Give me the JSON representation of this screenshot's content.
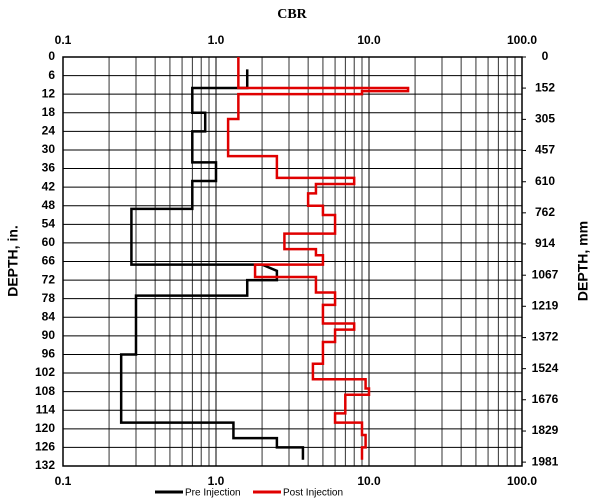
{
  "chart_data": {
    "type": "line",
    "title": "CBR",
    "title_color": "#8b1a1a",
    "ylabel": "DEPTH, in.",
    "y2label": "DEPTH, mm",
    "xscale": "log",
    "xlim": [
      0.1,
      100
    ],
    "xticks": [
      0.1,
      {
        "value": 1,
        "label": "1.0"
      },
      {
        "value": 10,
        "label": "10.0"
      },
      {
        "value": 100,
        "label": "100.0"
      }
    ],
    "ylim": [
      0,
      132
    ],
    "yticks": [
      0,
      6,
      12,
      18,
      24,
      30,
      36,
      42,
      48,
      54,
      60,
      66,
      72,
      78,
      84,
      90,
      96,
      102,
      108,
      114,
      120,
      126,
      132
    ],
    "y2lim": [
      0,
      2000
    ],
    "y2ticks": [
      0,
      152,
      305,
      457,
      610,
      762,
      914,
      1067,
      1219,
      1372,
      1524,
      1676,
      1829,
      1981
    ],
    "grid": true,
    "legend": "bottom",
    "series": [
      {
        "name": "Pre Injection",
        "color": "#000000",
        "values": [
          1.6,
          1.6,
          0.7,
          0.7,
          0.85,
          0.85,
          0.7,
          0.7,
          1.0,
          1.0,
          0.7,
          0.7,
          0.28,
          0.28,
          2.0,
          2.5,
          2.5,
          1.6,
          1.6,
          0.3,
          0.3,
          0.24,
          0.24,
          1.3,
          1.3,
          2.5,
          2.5,
          3.7,
          3.7
        ],
        "depth": [
          4,
          10,
          10,
          18,
          18,
          24,
          24,
          34,
          34,
          40,
          40,
          49,
          49,
          67,
          67,
          69,
          72,
          72,
          77,
          77,
          96,
          96,
          118,
          118,
          123,
          123,
          126,
          126,
          130
        ]
      },
      {
        "name": "Post Injection",
        "color": "#e00000",
        "values": [
          1.4,
          1.4,
          18,
          18,
          9,
          9,
          1.4,
          1.4,
          1.2,
          1.2,
          2.5,
          2.5,
          8,
          8,
          4.5,
          4.5,
          4,
          4,
          5,
          5,
          6,
          6,
          2.8,
          2.8,
          4.5,
          4.5,
          5,
          5,
          1.8,
          1.8,
          4.5,
          4.5,
          6,
          6,
          5,
          5,
          8,
          8,
          6,
          6,
          5,
          5,
          4.3,
          4.3,
          9.5,
          9.5,
          10,
          10,
          7,
          7,
          6,
          6,
          9,
          9,
          9.5,
          9.5,
          9,
          9
        ],
        "depth": [
          0,
          10,
          10,
          11,
          11,
          12,
          12,
          20,
          20,
          32,
          32,
          39,
          39,
          41,
          41,
          44,
          44,
          48,
          48,
          51,
          51,
          57,
          57,
          62,
          62,
          64,
          64,
          67,
          67,
          71,
          71,
          76,
          76,
          80,
          80,
          86,
          86,
          88,
          88,
          92,
          92,
          99,
          99,
          104,
          104,
          107,
          107,
          109,
          109,
          115,
          115,
          118,
          118,
          122,
          122,
          126,
          126,
          130
        ]
      }
    ]
  }
}
